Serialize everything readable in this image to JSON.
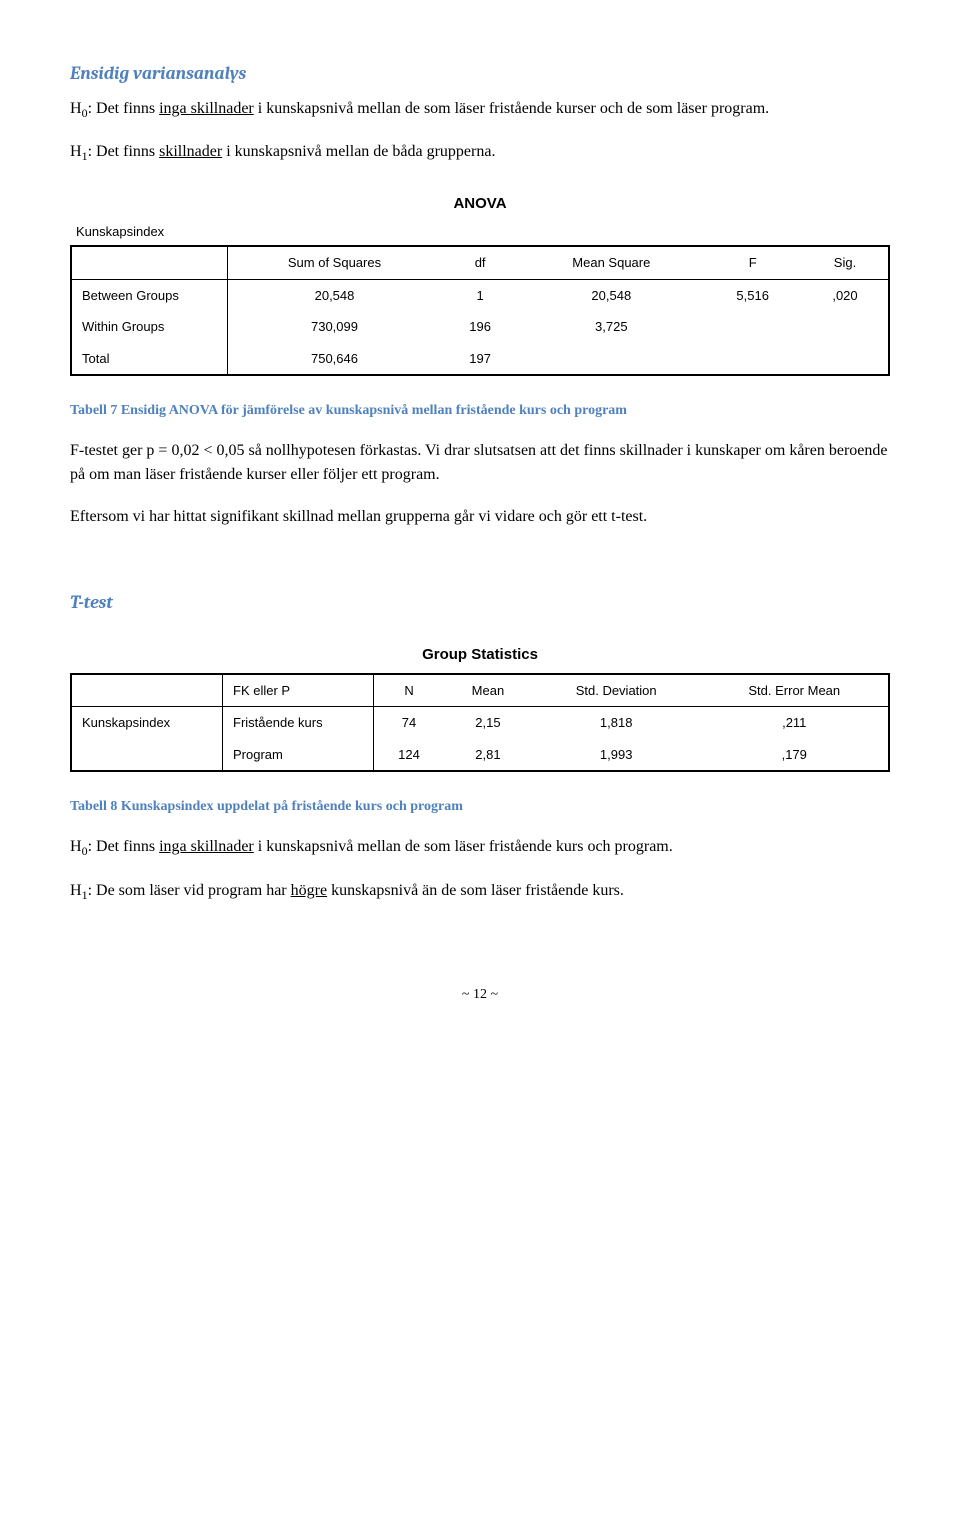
{
  "section1": {
    "heading": "Ensidig variansanalys",
    "h0_prefix": "H",
    "h0_sub": "0",
    "h0_text1": ": Det finns ",
    "h0_underline": "inga skillnader",
    "h0_text2": " i kunskapsnivå mellan de som läser fristående kurser och de som läser program.",
    "h1_prefix": "H",
    "h1_sub": "1",
    "h1_text1": ": Det finns ",
    "h1_underline": "skillnader",
    "h1_text2": " i kunskapsnivå mellan de båda grupperna."
  },
  "anova": {
    "title": "ANOVA",
    "subtitle": "Kunskapsindex",
    "headers": {
      "blank": "",
      "ss": "Sum of Squares",
      "df": "df",
      "ms": "Mean Square",
      "f": "F",
      "sig": "Sig."
    },
    "rows": [
      {
        "label": "Between Groups",
        "ss": "20,548",
        "df": "1",
        "ms": "20,548",
        "f": "5,516",
        "sig": ",020"
      },
      {
        "label": "Within Groups",
        "ss": "730,099",
        "df": "196",
        "ms": "3,725",
        "f": "",
        "sig": ""
      },
      {
        "label": "Total",
        "ss": "750,646",
        "df": "197",
        "ms": "",
        "f": "",
        "sig": ""
      }
    ],
    "caption": "Tabell 7 Ensidig ANOVA för jämförelse av kunskapsnivå mellan fristående kurs och program"
  },
  "interp": {
    "p1": "F-testet ger p = 0,02 < 0,05 så nollhypotesen förkastas. Vi drar slutsatsen att det finns skillnader i kunskaper om kåren beroende på om man läser fristående kurser eller följer ett program.",
    "p2": "Eftersom vi har hittat signifikant skillnad mellan grupperna går vi vidare och gör ett t-test."
  },
  "ttest": {
    "heading": "T-test",
    "title": "Group Statistics",
    "headers": {
      "blank": "",
      "group": "FK eller P",
      "n": "N",
      "mean": "Mean",
      "sd": "Std. Deviation",
      "se": "Std. Error Mean"
    },
    "rows": [
      {
        "name": "Kunskapsindex",
        "group": "Fristående kurs",
        "n": "74",
        "mean": "2,15",
        "sd": "1,818",
        "se": ",211"
      },
      {
        "name": "",
        "group": "Program",
        "n": "124",
        "mean": "2,81",
        "sd": "1,993",
        "se": ",179"
      }
    ],
    "caption": "Tabell 8 Kunskapsindex uppdelat på fristående kurs och program",
    "h0_prefix": "H",
    "h0_sub": "0",
    "h0_text1": ": Det finns ",
    "h0_underline": "inga skillnader",
    "h0_text2": " i kunskapsnivå mellan de som läser fristående kurs och program.",
    "h1_prefix": "H",
    "h1_sub": "1",
    "h1_text1": ": De som läser vid program har ",
    "h1_underline": "högre",
    "h1_text2": " kunskapsnivå än de som läser fristående kurs."
  },
  "pagenum": "~ 12 ~"
}
